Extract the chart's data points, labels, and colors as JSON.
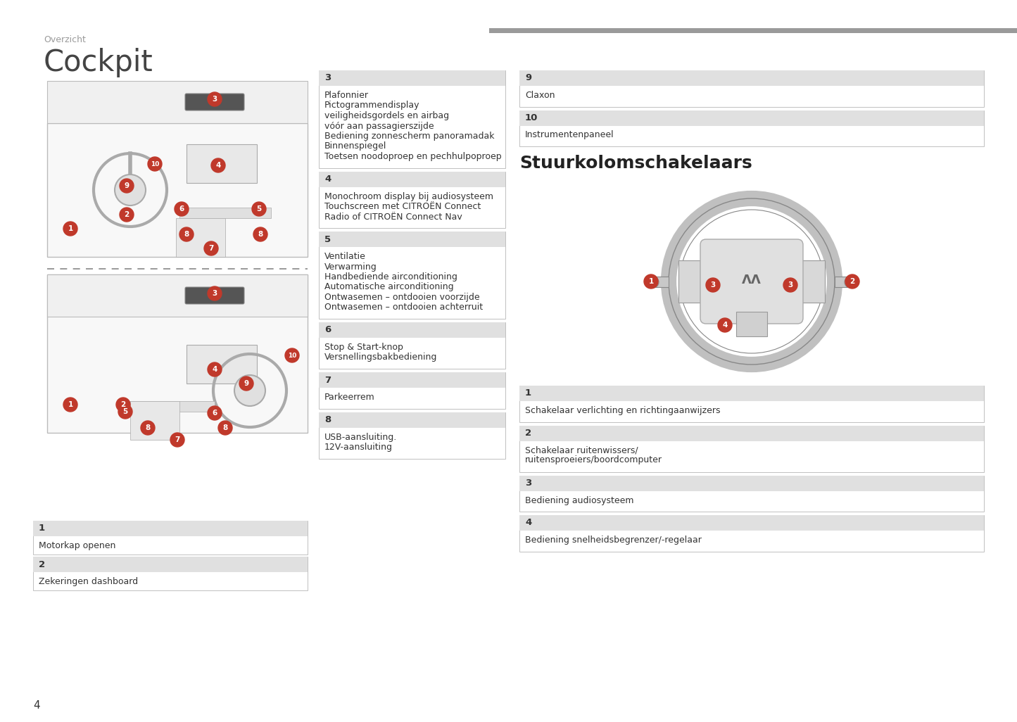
{
  "page_title": "Cockpit",
  "section_label": "Overzicht",
  "background_color": "#ffffff",
  "header_bar_color": "#999999",
  "header_text_color": "#9a9a9a",
  "box_border_color": "#cccccc",
  "box_header_bg": "#e0e0e0",
  "box_header_text_color": "#333333",
  "box_content_text_color": "#333333",
  "title_color": "#444444",
  "bold_section_title": "Stuurkolomschakelaars",
  "page_number": "4",
  "middle_boxes": [
    {
      "number": "3",
      "lines": [
        "Plafonnier",
        "Pictogrammendisplay",
        "veiligheidsgordels en airbag",
        "vóór aan passagierszijde",
        "Bediening zonnescherm panoramadak",
        "Binnenspiegel",
        "Toetsen noodoproep en pechhulpoproep"
      ]
    },
    {
      "number": "4",
      "lines": [
        "Monochroom display bij audiosysteem",
        "Touchscreen met CITROËN Connect",
        "Radio of CITROËN Connect Nav"
      ]
    },
    {
      "number": "5",
      "lines": [
        "Ventilatie",
        "Verwarming",
        "Handbediende airconditioning",
        "Automatische airconditioning",
        "Ontwasemen – ontdooien voorzijde",
        "Ontwasemen – ontdooien achterruit"
      ]
    },
    {
      "number": "6",
      "lines": [
        "Stop & Start-knop",
        "Versnellingsbakbediening"
      ]
    },
    {
      "number": "7",
      "lines": [
        "Parkeerrem"
      ]
    },
    {
      "number": "8",
      "lines": [
        "USB-aansluiting.",
        "12V-aansluiting"
      ]
    }
  ],
  "left_bottom_boxes": [
    {
      "number": "1",
      "lines": [
        "Motorkap openen"
      ]
    },
    {
      "number": "2",
      "lines": [
        "Zekeringen dashboard"
      ]
    }
  ],
  "right_top_boxes": [
    {
      "number": "9",
      "lines": [
        "Claxon"
      ]
    },
    {
      "number": "10",
      "lines": [
        "Instrumentenpaneel"
      ]
    }
  ],
  "right_bottom_boxes": [
    {
      "number": "1",
      "lines": [
        "Schakelaar verlichting en richtingaanwijzers"
      ]
    },
    {
      "number": "2",
      "lines": [
        "Schakelaar ruitenwissers/",
        "ruitensproeiers/boordcomputer"
      ]
    },
    {
      "number": "3",
      "lines": [
        "Bediening audiosysteem"
      ]
    },
    {
      "number": "4",
      "lines": [
        "Bediening snelheidsbegrenzer/-regelaar"
      ]
    }
  ]
}
